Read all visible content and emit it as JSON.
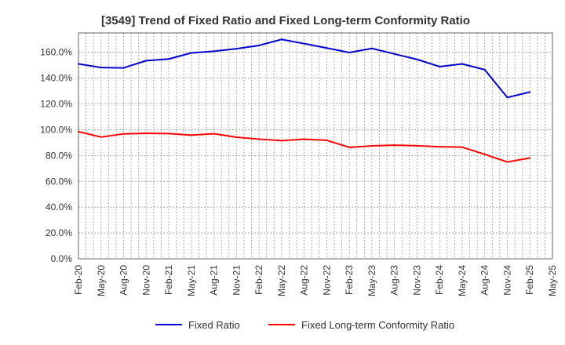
{
  "chart_data": {
    "type": "line",
    "title": "[3549]  Trend of Fixed Ratio and Fixed Long-term Conformity Ratio",
    "xlabel": "",
    "ylabel": "",
    "ylim": [
      0,
      175
    ],
    "yticks": [
      0,
      20,
      40,
      60,
      80,
      100,
      120,
      140,
      160
    ],
    "ytick_labels": [
      "0.0%",
      "20.0%",
      "40.0%",
      "60.0%",
      "80.0%",
      "100.0%",
      "120.0%",
      "140.0%",
      "160.0%"
    ],
    "xtick_labels": [
      "Feb-20",
      "May-20",
      "Aug-20",
      "Nov-20",
      "Feb-21",
      "May-21",
      "Aug-21",
      "Nov-21",
      "Feb-22",
      "May-22",
      "Aug-22",
      "Nov-22",
      "Feb-23",
      "May-23",
      "Aug-23",
      "Nov-23",
      "Feb-24",
      "May-24",
      "Aug-24",
      "Nov-24",
      "Feb-25",
      "May-25"
    ],
    "x": [
      "Feb-20",
      "May-20",
      "Aug-20",
      "Nov-20",
      "Feb-21",
      "May-21",
      "Aug-21",
      "Nov-21",
      "Feb-22",
      "May-22",
      "Aug-22",
      "Nov-22",
      "Feb-23",
      "May-23",
      "Aug-23",
      "Nov-23",
      "Feb-24",
      "May-24",
      "Aug-24",
      "Nov-24",
      "Feb-25"
    ],
    "series": [
      {
        "name": "Fixed Ratio",
        "color": "#0000cc",
        "values": [
          151.0,
          148.2,
          147.9,
          153.5,
          154.8,
          159.5,
          160.8,
          162.8,
          165.3,
          170.0,
          166.7,
          163.3,
          159.8,
          163.0,
          158.7,
          154.5,
          148.9,
          151.0,
          146.5,
          125.0,
          129.2
        ]
      },
      {
        "name": "Fixed Long-term Conformity Ratio",
        "color": "#ff0000",
        "values": [
          98.5,
          94.3,
          96.8,
          97.2,
          97.0,
          95.8,
          96.9,
          94.2,
          92.7,
          91.5,
          92.7,
          91.8,
          86.3,
          87.5,
          88.0,
          87.6,
          86.8,
          86.5,
          80.9,
          75.0,
          78.1
        ]
      }
    ],
    "grid": true,
    "legend_position": "bottom"
  }
}
